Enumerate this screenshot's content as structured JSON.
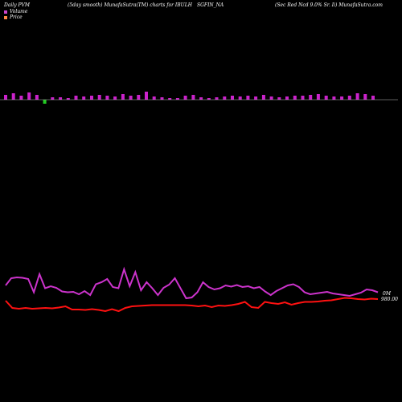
{
  "header": {
    "left": "Daily PVM",
    "mid1": "(5day smooth) MunafaSutra(TM) charts for IBULH",
    "mid2": "SGFIN_NA",
    "right": "(Sec Red Ncd 9.0% Sr. Ii) MunafaSutra.com"
  },
  "legend": {
    "volume_label": "Volume",
    "price_label": "Price",
    "volume_color": "#cc44cc",
    "price_color": "#ff8844"
  },
  "colors": {
    "background": "#000000",
    "bar_up": "#cc22cc",
    "bar_down": "#22cc22",
    "baseline": "#bbbbbb",
    "volume_line": "#cc33cc",
    "price_line": "#ff1111"
  },
  "chart_data": {
    "type": "line",
    "bars_baseline": 0,
    "bars": [
      {
        "v": 6,
        "dir": "up"
      },
      {
        "v": 8,
        "dir": "up"
      },
      {
        "v": 5,
        "dir": "up"
      },
      {
        "v": 9,
        "dir": "up"
      },
      {
        "v": 6,
        "dir": "up"
      },
      {
        "v": -5,
        "dir": "down"
      },
      {
        "v": 3,
        "dir": "up"
      },
      {
        "v": 3,
        "dir": "up"
      },
      {
        "v": 2,
        "dir": "up"
      },
      {
        "v": 5,
        "dir": "up"
      },
      {
        "v": 4,
        "dir": "up"
      },
      {
        "v": 5,
        "dir": "up"
      },
      {
        "v": 6,
        "dir": "up"
      },
      {
        "v": 5,
        "dir": "up"
      },
      {
        "v": 4,
        "dir": "up"
      },
      {
        "v": 7,
        "dir": "up"
      },
      {
        "v": 5,
        "dir": "up"
      },
      {
        "v": 6,
        "dir": "up"
      },
      {
        "v": 10,
        "dir": "up"
      },
      {
        "v": 4,
        "dir": "up"
      },
      {
        "v": 3,
        "dir": "up"
      },
      {
        "v": 2,
        "dir": "up"
      },
      {
        "v": 2,
        "dir": "up"
      },
      {
        "v": 5,
        "dir": "up"
      },
      {
        "v": 6,
        "dir": "up"
      },
      {
        "v": 3,
        "dir": "up"
      },
      {
        "v": 2,
        "dir": "up"
      },
      {
        "v": 3,
        "dir": "up"
      },
      {
        "v": 4,
        "dir": "up"
      },
      {
        "v": 5,
        "dir": "up"
      },
      {
        "v": 4,
        "dir": "up"
      },
      {
        "v": 5,
        "dir": "up"
      },
      {
        "v": 4,
        "dir": "up"
      },
      {
        "v": 6,
        "dir": "up"
      },
      {
        "v": 4,
        "dir": "up"
      },
      {
        "v": 3,
        "dir": "up"
      },
      {
        "v": 4,
        "dir": "up"
      },
      {
        "v": 5,
        "dir": "up"
      },
      {
        "v": 5,
        "dir": "up"
      },
      {
        "v": 6,
        "dir": "up"
      },
      {
        "v": 7,
        "dir": "up"
      },
      {
        "v": 5,
        "dir": "up"
      },
      {
        "v": 4,
        "dir": "up"
      },
      {
        "v": 4,
        "dir": "up"
      },
      {
        "v": 5,
        "dir": "up"
      },
      {
        "v": 8,
        "dir": "up"
      },
      {
        "v": 7,
        "dir": "up"
      },
      {
        "v": 5,
        "dir": "up"
      }
    ],
    "volume_series": [
      62,
      80,
      82,
      81,
      78,
      45,
      90,
      55,
      60,
      56,
      47,
      45,
      46,
      40,
      48,
      38,
      65,
      70,
      78,
      58,
      55,
      102,
      60,
      95,
      50,
      70,
      55,
      38,
      56,
      64,
      80,
      55,
      30,
      32,
      45,
      70,
      58,
      52,
      55,
      62,
      59,
      63,
      58,
      60,
      55,
      58,
      47,
      38,
      48,
      55,
      62,
      65,
      58,
      45,
      40,
      42,
      44,
      46,
      42,
      40,
      38,
      36,
      40,
      44,
      52,
      50,
      45
    ],
    "price_series": [
      48,
      30,
      28,
      30,
      28,
      29,
      30,
      29,
      31,
      34,
      26,
      26,
      25,
      27,
      25,
      22,
      27,
      22,
      30,
      34,
      35,
      36,
      37,
      37,
      37,
      37,
      37,
      37,
      36,
      34,
      36,
      32,
      36,
      35,
      37,
      40,
      45,
      32,
      30,
      45,
      42,
      40,
      44,
      38,
      42,
      45,
      45,
      46,
      48,
      49,
      52,
      55,
      54,
      52,
      51,
      53,
      52
    ],
    "value_labels": [
      "0M",
      "980.00"
    ]
  }
}
